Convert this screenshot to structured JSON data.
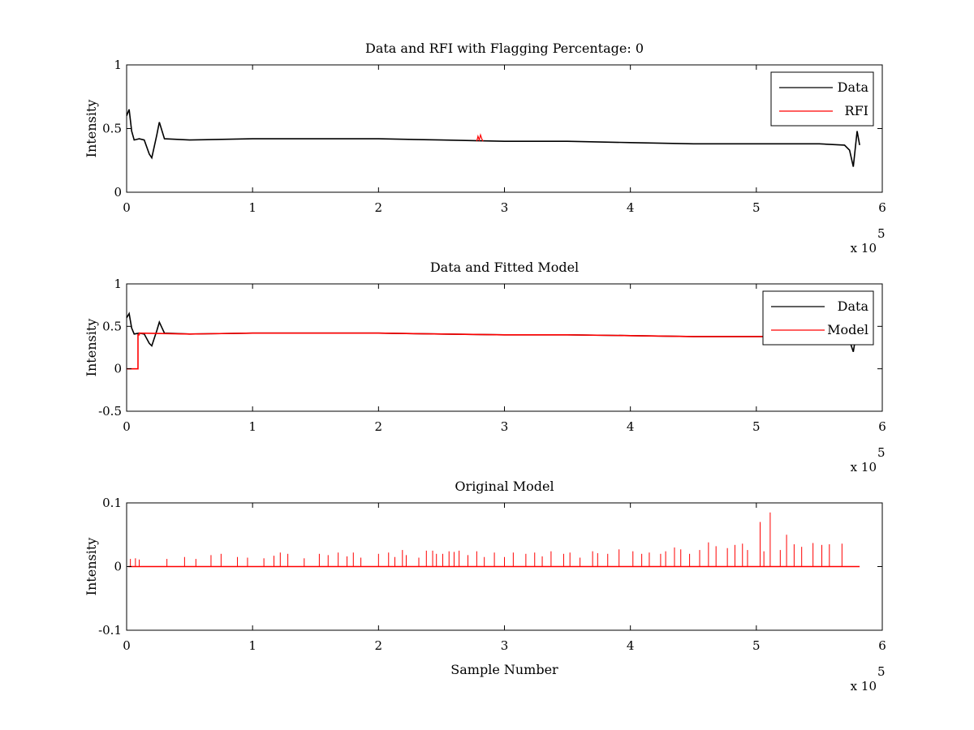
{
  "figure": {
    "background": "#ffffff"
  },
  "chart_data": [
    {
      "type": "line",
      "title": "Data and RFI with Flagging Percentage: 0",
      "xlabel": "",
      "ylabel": "Intensity",
      "xlim": [
        0,
        6
      ],
      "ylim": [
        0,
        1
      ],
      "xticks": [
        0,
        1,
        2,
        3,
        4,
        5,
        6
      ],
      "yticks": [
        0,
        0.5,
        1
      ],
      "xtick_labels": [
        "0",
        "1",
        "2",
        "3",
        "4",
        "5",
        "6"
      ],
      "ytick_labels": [
        "0",
        "0.5",
        "1"
      ],
      "x_exponent_label": "x 10",
      "x_exponent_power": "5",
      "grid": false,
      "legend": {
        "placement": "top-right",
        "entries": [
          "Data",
          "RFI"
        ]
      },
      "series": [
        {
          "name": "Data",
          "color": "#000000",
          "x": [
            0.0,
            0.02,
            0.04,
            0.06,
            0.1,
            0.14,
            0.18,
            0.2,
            0.24,
            0.26,
            0.3,
            0.5,
            1.0,
            1.5,
            2.0,
            2.5,
            3.0,
            3.5,
            4.0,
            4.5,
            5.0,
            5.5,
            5.7,
            5.74,
            5.77,
            5.8,
            5.82
          ],
          "y": [
            0.6,
            0.65,
            0.48,
            0.41,
            0.42,
            0.41,
            0.3,
            0.27,
            0.45,
            0.55,
            0.42,
            0.41,
            0.42,
            0.42,
            0.42,
            0.41,
            0.4,
            0.4,
            0.39,
            0.38,
            0.38,
            0.38,
            0.37,
            0.33,
            0.2,
            0.48,
            0.37
          ]
        },
        {
          "name": "RFI",
          "color": "#ff0000",
          "x": [
            2.78,
            2.79,
            2.8,
            2.81,
            2.82,
            2.83
          ],
          "y": [
            0.4,
            0.44,
            0.41,
            0.45,
            0.42,
            0.4
          ]
        }
      ]
    },
    {
      "type": "line",
      "title": "Data and Fitted Model",
      "xlabel": "",
      "ylabel": "Intensity",
      "xlim": [
        0,
        6
      ],
      "ylim": [
        -0.5,
        1
      ],
      "xticks": [
        0,
        1,
        2,
        3,
        4,
        5,
        6
      ],
      "yticks": [
        -0.5,
        0,
        0.5,
        1
      ],
      "xtick_labels": [
        "0",
        "1",
        "2",
        "3",
        "4",
        "5",
        "6"
      ],
      "ytick_labels": [
        "-0.5",
        "0",
        "0.5",
        "1"
      ],
      "x_exponent_label": "x 10",
      "x_exponent_power": "5",
      "grid": false,
      "legend": {
        "placement": "top-right",
        "entries": [
          "Data",
          "Model"
        ]
      },
      "series": [
        {
          "name": "Data",
          "color": "#000000",
          "x": [
            0.0,
            0.02,
            0.04,
            0.06,
            0.1,
            0.14,
            0.18,
            0.2,
            0.24,
            0.26,
            0.3,
            0.5,
            1.0,
            1.5,
            2.0,
            2.5,
            3.0,
            3.5,
            4.0,
            4.5,
            5.0,
            5.5,
            5.7,
            5.74,
            5.77,
            5.8,
            5.82
          ],
          "y": [
            0.6,
            0.65,
            0.48,
            0.41,
            0.42,
            0.41,
            0.3,
            0.27,
            0.45,
            0.55,
            0.42,
            0.41,
            0.42,
            0.42,
            0.42,
            0.41,
            0.4,
            0.4,
            0.39,
            0.38,
            0.38,
            0.38,
            0.37,
            0.33,
            0.2,
            0.48,
            0.37
          ]
        },
        {
          "name": "Model",
          "color": "#ff0000",
          "x": [
            0.0,
            0.09,
            0.09,
            0.1,
            0.1,
            0.5,
            1.0,
            1.5,
            2.0,
            2.5,
            3.0,
            3.5,
            4.0,
            4.5,
            5.0,
            5.5,
            5.8
          ],
          "y": [
            0.0,
            0.0,
            0.4,
            0.4,
            0.42,
            0.41,
            0.42,
            0.42,
            0.42,
            0.41,
            0.4,
            0.4,
            0.39,
            0.38,
            0.38,
            0.38,
            0.37
          ]
        }
      ]
    },
    {
      "type": "line",
      "title": "Original Model",
      "xlabel": "Sample Number",
      "ylabel": "Intensity",
      "xlim": [
        0,
        6
      ],
      "ylim": [
        -0.1,
        0.1
      ],
      "xticks": [
        0,
        1,
        2,
        3,
        4,
        5,
        6
      ],
      "yticks": [
        -0.1,
        0,
        0.1
      ],
      "xtick_labels": [
        "0",
        "1",
        "2",
        "3",
        "4",
        "5",
        "6"
      ],
      "ytick_labels": [
        "-0.1",
        "0",
        "0.1"
      ],
      "x_exponent_label": "x 10",
      "x_exponent_power": "5",
      "grid": false,
      "legend": null,
      "baseline": 0,
      "series": [
        {
          "name": "",
          "color": "#ff0000",
          "style": "spikes",
          "x": [
            0.03,
            0.07,
            0.1,
            0.32,
            0.46,
            0.55,
            0.67,
            0.75,
            0.88,
            0.96,
            1.09,
            1.17,
            1.22,
            1.28,
            1.41,
            1.53,
            1.6,
            1.68,
            1.75,
            1.8,
            1.86,
            2.0,
            2.08,
            2.13,
            2.19,
            2.22,
            2.32,
            2.38,
            2.43,
            2.46,
            2.51,
            2.56,
            2.6,
            2.64,
            2.71,
            2.78,
            2.84,
            2.92,
            3.0,
            3.07,
            3.17,
            3.24,
            3.3,
            3.37,
            3.47,
            3.52,
            3.6,
            3.7,
            3.74,
            3.82,
            3.91,
            4.02,
            4.09,
            4.15,
            4.24,
            4.28,
            4.35,
            4.4,
            4.47,
            4.55,
            4.62,
            4.68,
            4.77,
            4.83,
            4.89,
            4.93,
            5.03,
            5.06,
            5.11,
            5.19,
            5.24,
            5.3,
            5.36,
            5.45,
            5.52,
            5.58,
            5.68
          ],
          "y": [
            0.012,
            0.013,
            0.011,
            0.012,
            0.015,
            0.012,
            0.018,
            0.02,
            0.015,
            0.014,
            0.013,
            0.017,
            0.022,
            0.02,
            0.013,
            0.02,
            0.018,
            0.022,
            0.016,
            0.022,
            0.014,
            0.02,
            0.022,
            0.015,
            0.026,
            0.018,
            0.014,
            0.025,
            0.025,
            0.02,
            0.02,
            0.024,
            0.023,
            0.025,
            0.018,
            0.024,
            0.015,
            0.022,
            0.015,
            0.022,
            0.02,
            0.022,
            0.016,
            0.024,
            0.02,
            0.022,
            0.014,
            0.024,
            0.021,
            0.02,
            0.027,
            0.024,
            0.02,
            0.022,
            0.02,
            0.024,
            0.03,
            0.027,
            0.02,
            0.026,
            0.038,
            0.032,
            0.029,
            0.034,
            0.036,
            0.026,
            0.07,
            0.024,
            0.085,
            0.026,
            0.05,
            0.035,
            0.031,
            0.037,
            0.034,
            0.035,
            0.036
          ]
        }
      ]
    }
  ]
}
